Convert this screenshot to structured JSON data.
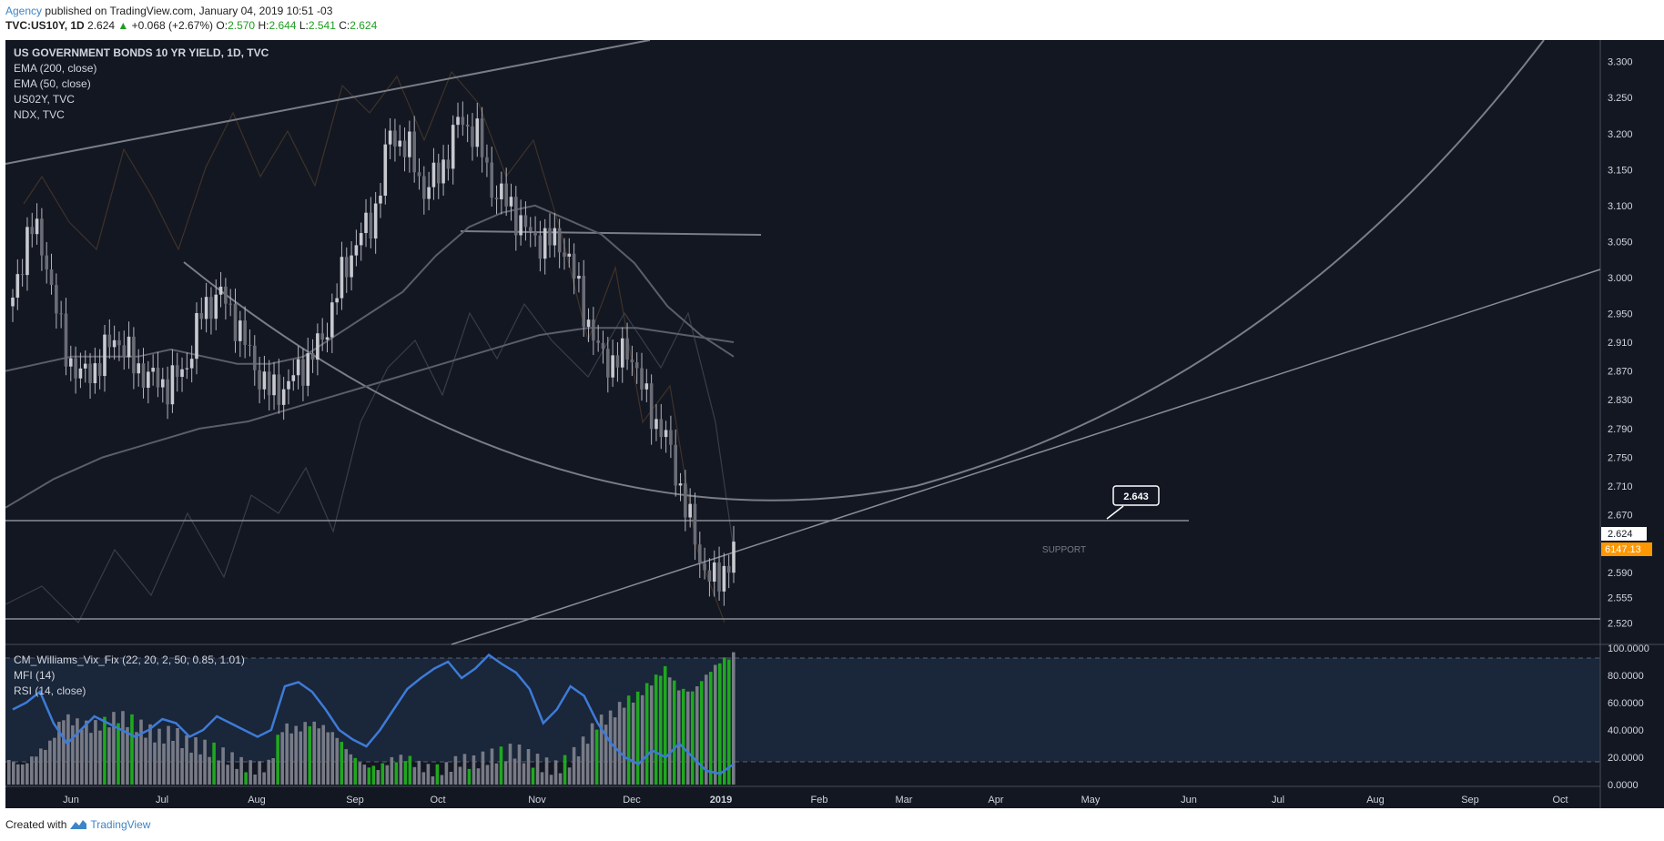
{
  "header": {
    "author": "Agency",
    "published_text": "published on TradingView.com, January 04, 2019 10:51 -03",
    "symbol": "TVC:US10Y, 1D",
    "last": "2.624",
    "change": "+0.068 (+2.67%)",
    "open_label": "O:",
    "open": "2.570",
    "high_label": "H:",
    "high": "2.644",
    "low_label": "L:",
    "low": "2.541",
    "close_label": "C:",
    "close": "2.624"
  },
  "legend": {
    "title": "US GOVERNMENT BONDS 10 YR YIELD, 1D, TVC",
    "ema200": "EMA (200, close)",
    "ema50": "EMA (50, close)",
    "us02y": "US02Y, TVC",
    "ndx": "NDX, TVC"
  },
  "indicator_legend": {
    "vix_fix": "CM_Williams_Vix_Fix (22, 20, 2, 50, 0.85, 1.01)",
    "mfi": "MFI (14)",
    "rsi": "RSI (14, close)"
  },
  "annotations": {
    "callout_value": "2.643",
    "support_label": "SUPPORT",
    "last_price_tag": "2.624",
    "ndx_price_tag": "6147.13"
  },
  "footer": {
    "created_with": "Created with",
    "brand": "TradingView"
  },
  "colors": {
    "background": "#131722",
    "indicator_bg": "#1a2639",
    "rsi_line": "#3d7bd8",
    "vix_green": "#1fa81f",
    "vix_gray": "#787b86",
    "ndx_tag": "#ff9800",
    "brand_blue": "#3d85c6"
  },
  "chart_data": [
    {
      "type": "candlestick",
      "title": "US GOVERNMENT BONDS 10 YR YIELD, 1D, TVC",
      "x_ticks": [
        "Jun",
        "Jul",
        "Aug",
        "Sep",
        "Oct",
        "Nov",
        "Dec",
        "2019",
        "Feb",
        "Mar",
        "Apr",
        "May",
        "Jun",
        "Jul",
        "Aug",
        "Sep",
        "Oct"
      ],
      "y_ticks": [
        3.3,
        3.25,
        3.2,
        3.15,
        3.1,
        3.05,
        3.0,
        2.95,
        2.91,
        2.87,
        2.83,
        2.79,
        2.75,
        2.71,
        2.67,
        2.624,
        2.59,
        2.555,
        2.52
      ],
      "y_tick_labels": [
        "3.300",
        "3.250",
        "3.200",
        "3.150",
        "3.100",
        "3.050",
        "3.000",
        "2.950",
        "2.910",
        "2.870",
        "2.830",
        "2.790",
        "2.750",
        "2.710",
        "2.670",
        "2.590",
        "2.555",
        "2.520"
      ],
      "ylim": [
        2.49,
        3.33
      ],
      "series": [
        {
          "values": [
            2.96,
            3.08,
            3.02,
            2.9,
            2.86,
            2.88,
            2.92,
            2.88,
            2.86,
            2.85,
            2.87,
            2.95,
            2.98,
            2.94,
            2.88,
            2.84,
            2.85,
            2.88,
            2.91,
            2.99,
            3.05,
            3.08,
            3.2,
            3.18,
            3.12,
            3.15,
            3.22,
            3.2,
            3.12,
            3.1,
            3.06,
            3.05,
            3.05,
            2.98,
            2.9,
            2.88,
            2.9,
            2.82,
            2.78,
            2.7,
            2.61,
            2.57,
            2.624
          ]
        },
        {
          "name": "EMA (50, close)",
          "values": [
            2.87,
            2.88,
            2.89,
            2.89,
            2.89,
            2.9,
            2.89,
            2.88,
            2.88,
            2.89,
            2.92,
            2.95,
            2.98,
            3.03,
            3.07,
            3.09,
            3.1,
            3.08,
            3.06,
            3.02,
            2.96,
            2.92,
            2.89
          ]
        },
        {
          "name": "EMA (200, close)",
          "values": [
            2.68,
            2.72,
            2.75,
            2.77,
            2.79,
            2.8,
            2.82,
            2.84,
            2.86,
            2.88,
            2.9,
            2.92,
            2.93,
            2.93,
            2.92,
            2.91
          ]
        }
      ],
      "horizontal_lines": [
        2.643,
        2.52
      ],
      "callout": 2.643,
      "last_price": 2.624,
      "ndx_last": 6147.13
    },
    {
      "type": "bar+line",
      "title": "CM_Williams_Vix_Fix / MFI / RSI",
      "y_ticks": [
        100,
        80,
        60,
        40,
        20,
        0
      ],
      "y_tick_labels": [
        "100.0000",
        "80.0000",
        "60.0000",
        "40.0000",
        "20.0000",
        "0.0000"
      ],
      "ylim": [
        0,
        100
      ],
      "dashed_levels": [
        92,
        8
      ],
      "series": [
        {
          "name": "RSI (14, close)",
          "values": [
            55,
            60,
            68,
            45,
            30,
            40,
            50,
            45,
            40,
            35,
            40,
            48,
            45,
            35,
            40,
            50,
            45,
            40,
            35,
            40,
            72,
            75,
            68,
            55,
            40,
            33,
            28,
            40,
            55,
            70,
            78,
            85,
            90,
            78,
            85,
            95,
            88,
            82,
            70,
            45,
            55,
            72,
            65,
            45,
            30,
            20,
            15,
            25,
            20,
            30,
            20,
            10,
            8,
            15
          ]
        },
        {
          "name": "CM_Williams_Vix_Fix",
          "values": [
            18,
            14,
            22,
            30,
            50,
            45,
            42,
            45,
            50,
            46,
            40,
            35,
            38,
            30,
            28,
            25,
            20,
            15,
            12,
            14,
            42,
            40,
            45,
            42,
            35,
            22,
            14,
            12,
            18,
            20,
            14,
            10,
            12,
            18,
            16,
            20,
            22,
            25,
            20,
            15,
            12,
            18,
            30,
            45,
            50,
            60,
            65,
            75,
            85,
            70,
            68,
            80,
            90,
            95
          ]
        }
      ]
    }
  ]
}
